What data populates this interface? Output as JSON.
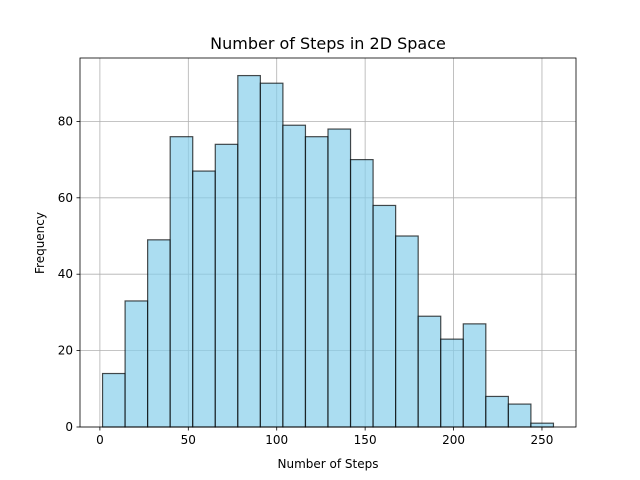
{
  "chart_data": {
    "type": "bar",
    "title": "Number of Steps in 2D Space",
    "xlabel": "Number of Steps",
    "ylabel": "Frequency",
    "bin_edges": [
      1.5,
      14.25,
      27.0,
      39.75,
      52.5,
      65.25,
      78.0,
      90.75,
      103.5,
      116.25,
      129.0,
      141.75,
      154.5,
      167.25,
      180.0,
      192.75,
      205.5,
      218.25,
      231.0,
      243.75,
      256.5
    ],
    "values": [
      14,
      33,
      49,
      76,
      67,
      74,
      92,
      90,
      79,
      76,
      78,
      70,
      58,
      50,
      29,
      23,
      27,
      8,
      6,
      1
    ],
    "xlim": [
      -11.25,
      269.25
    ],
    "ylim": [
      0,
      96.6
    ],
    "xticks": [
      0,
      50,
      100,
      150,
      200,
      250
    ],
    "xtick_labels": [
      "0",
      "50",
      "100",
      "150",
      "200",
      "250"
    ],
    "yticks": [
      0,
      20,
      40,
      60,
      80
    ],
    "ytick_labels": [
      "0",
      "20",
      "40",
      "60",
      "80"
    ],
    "grid": true,
    "bar_color": "#87CEEB",
    "bar_alpha": 0.7,
    "edge_color": "#000000"
  }
}
